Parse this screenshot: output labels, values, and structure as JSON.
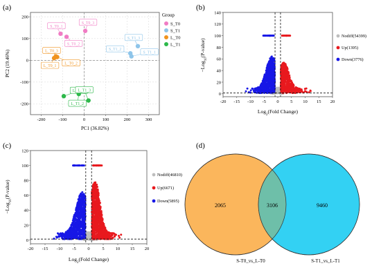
{
  "chart_data": [
    {
      "panel_label": "(a)",
      "type": "scatter",
      "xlabel": "PC1 (36.82%)",
      "ylabel": "PC2 (19.46%)",
      "xlim": [
        -250,
        350
      ],
      "ylim": [
        -250,
        220
      ],
      "xticks": [
        "-200",
        "-100",
        "0",
        "100",
        "200",
        "300"
      ],
      "xtick_values": [
        -200,
        -100,
        0,
        100,
        200,
        300
      ],
      "yticks": [
        "-200",
        "-100",
        "0",
        "100",
        "200"
      ],
      "ytick_values": [
        -200,
        -100,
        0,
        100,
        200
      ],
      "legend": {
        "title": "Group",
        "position": "right"
      },
      "series": [
        {
          "name": "S_T0",
          "color": "#f07cc4",
          "points": [
            {
              "x": -110,
              "y": 122,
              "label": "S_T0_1"
            },
            {
              "x": -82,
              "y": 108,
              "label": "S_T0_2"
            },
            {
              "x": 5,
              "y": 135,
              "label": "S_T0_3"
            }
          ]
        },
        {
          "name": "S_T1",
          "color": "#8ec5ea",
          "points": [
            {
              "x": 220,
              "y": 18,
              "label": "S_T1_1"
            },
            {
              "x": 215,
              "y": 32,
              "label": "S_T1_2"
            },
            {
              "x": 250,
              "y": 65,
              "label": "S_T1_3"
            }
          ]
        },
        {
          "name": "L_T0",
          "color": "#f0931e",
          "points": [
            {
              "x": -140,
              "y": 10,
              "label": "L_T0_1"
            },
            {
              "x": -132,
              "y": 18,
              "label": "L_T0_2"
            },
            {
              "x": -126,
              "y": 15,
              "label": "L_T0_3"
            }
          ]
        },
        {
          "name": "L_T1",
          "color": "#2db84a",
          "points": [
            {
              "x": -95,
              "y": -165,
              "label": "L_T1_1"
            },
            {
              "x": -25,
              "y": -155,
              "label": "L_T1_2"
            },
            {
              "x": 20,
              "y": -185,
              "label": "L_T1_3"
            }
          ]
        }
      ]
    },
    {
      "panel_label": "(b)",
      "type": "scatter",
      "xlabel": "Log2(Fold Change)",
      "ylabel": "-Log10(P-value)",
      "xlim": [
        -20,
        20
      ],
      "ylim": [
        -5,
        140
      ],
      "xticks": [
        "-20",
        "-15",
        "-10",
        "-5",
        "0",
        "5",
        "10",
        "15",
        "20"
      ],
      "xtick_values": [
        -20,
        -15,
        -10,
        -5,
        0,
        5,
        10,
        15,
        20
      ],
      "yticks": [
        "0",
        "20",
        "40",
        "60",
        "80",
        "100",
        "120",
        "140"
      ],
      "ytick_values": [
        0,
        20,
        40,
        60,
        80,
        100,
        120,
        140
      ],
      "threshold_lines": {
        "x": [
          -1,
          1
        ],
        "y": 1.3
      },
      "legend": {
        "position": "right"
      },
      "series": [
        {
          "name": "Nodiff(54399)",
          "color": "#bdbdbd",
          "count": 54399
        },
        {
          "name": "Up(1395)",
          "color": "#e8191e",
          "count": 1395
        },
        {
          "name": "Down(3776)",
          "color": "#1717e6",
          "count": 3776
        }
      ]
    },
    {
      "panel_label": "(c)",
      "type": "scatter",
      "xlabel": "Log2(Fold Change)",
      "ylabel": "-Log10(P-value)",
      "xlim": [
        -20,
        20
      ],
      "ylim": [
        -5,
        120
      ],
      "xticks": [
        "-20",
        "-15",
        "-10",
        "-5",
        "0",
        "5",
        "10",
        "15",
        "20"
      ],
      "xtick_values": [
        -20,
        -15,
        -10,
        -5,
        0,
        5,
        10,
        15,
        20
      ],
      "yticks": [
        "0",
        "20",
        "40",
        "60",
        "80",
        "100",
        "120"
      ],
      "ytick_values": [
        0,
        20,
        40,
        60,
        80,
        100,
        120
      ],
      "threshold_lines": {
        "x": [
          -1,
          1
        ],
        "y": 1.3
      },
      "legend": {
        "position": "right"
      },
      "series": [
        {
          "name": "Nodiff(46810)",
          "color": "#bdbdbd",
          "count": 46810
        },
        {
          "name": "Up(6671)",
          "color": "#e8191e",
          "count": 6671
        },
        {
          "name": "Down(5895)",
          "color": "#1717e6",
          "count": 5895
        }
      ]
    },
    {
      "panel_label": "(d)",
      "type": "venn",
      "sets": [
        {
          "name": "S-T0_vs_L-T0",
          "color": "#fbb65c",
          "only": "2065"
        },
        {
          "name": "S-T1_vs_L-T1",
          "color": "#33d1f3",
          "only": "9460"
        }
      ],
      "intersection": "3106",
      "overlap_color": "#6ebfa9"
    }
  ]
}
